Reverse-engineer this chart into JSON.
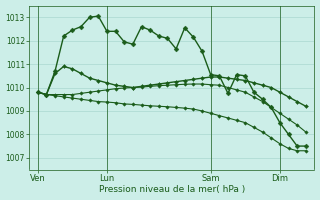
{
  "title": "Pression niveau de la mer( hPa )",
  "bg_color": "#cceee8",
  "grid_color": "#aad8d0",
  "line_color": "#1a5c1a",
  "ylim": [
    1006.5,
    1013.5
  ],
  "yticks": [
    1007,
    1008,
    1009,
    1010,
    1011,
    1012,
    1013
  ],
  "day_labels": [
    "Ven",
    "Lun",
    "Sam",
    "Dim"
  ],
  "day_positions": [
    1,
    9,
    21,
    29
  ],
  "xlim": [
    0,
    33
  ],
  "series": [
    {
      "y": [
        1009.8,
        1009.7,
        1010.7,
        1012.2,
        1012.45,
        1012.6,
        1013.0,
        1013.05,
        1012.4,
        1012.4,
        1011.95,
        1011.85,
        1012.6,
        1012.45,
        1012.2,
        1012.1,
        1011.65,
        1012.55,
        1012.15,
        1011.55,
        1010.55,
        1010.5,
        1009.75,
        1010.55,
        1010.5,
        1009.8,
        1009.5,
        1009.15,
        1008.5,
        1008.0,
        1007.5,
        1007.5
      ],
      "lw": 1.0,
      "ms": 2.5,
      "marker": "D"
    },
    {
      "y": [
        1009.8,
        1009.7,
        1010.6,
        1010.9,
        1010.8,
        1010.6,
        1010.4,
        1010.3,
        1010.2,
        1010.1,
        1010.05,
        1010.0,
        1010.05,
        1010.1,
        1010.15,
        1010.2,
        1010.25,
        1010.3,
        1010.35,
        1010.4,
        1010.45,
        1010.45,
        1010.4,
        1010.35,
        1010.3,
        1010.2,
        1010.1,
        1010.0,
        1009.8,
        1009.6,
        1009.4,
        1009.2
      ],
      "lw": 1.0,
      "ms": 2.0,
      "marker": "D"
    },
    {
      "y": [
        1009.8,
        1009.7,
        1009.7,
        1009.7,
        1009.7,
        1009.75,
        1009.8,
        1009.85,
        1009.9,
        1009.95,
        1009.98,
        1010.0,
        1010.02,
        1010.05,
        1010.08,
        1010.1,
        1010.12,
        1010.14,
        1010.15,
        1010.15,
        1010.12,
        1010.1,
        1010.0,
        1009.9,
        1009.8,
        1009.6,
        1009.4,
        1009.15,
        1008.9,
        1008.65,
        1008.4,
        1008.1
      ],
      "lw": 0.8,
      "ms": 1.8,
      "marker": "D"
    },
    {
      "y": [
        1009.8,
        1009.7,
        1009.65,
        1009.6,
        1009.55,
        1009.5,
        1009.45,
        1009.4,
        1009.38,
        1009.35,
        1009.3,
        1009.28,
        1009.25,
        1009.22,
        1009.2,
        1009.18,
        1009.15,
        1009.12,
        1009.08,
        1009.0,
        1008.9,
        1008.8,
        1008.7,
        1008.6,
        1008.5,
        1008.3,
        1008.1,
        1007.85,
        1007.6,
        1007.4,
        1007.3,
        1007.3
      ],
      "lw": 0.8,
      "ms": 1.8,
      "marker": "D"
    }
  ]
}
